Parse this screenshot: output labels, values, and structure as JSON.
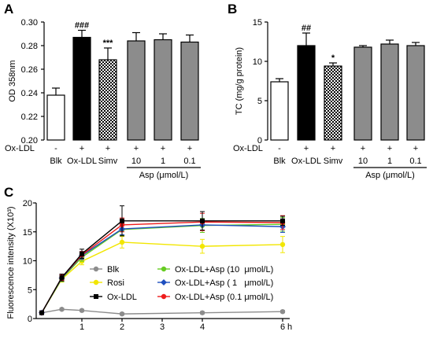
{
  "chart_data": [
    {
      "panel": "A",
      "type": "bar",
      "categories": [
        "Blk",
        "Ox-LDL",
        "Simv",
        "10",
        "1",
        "0.1"
      ],
      "values": [
        0.238,
        0.287,
        0.268,
        0.284,
        0.285,
        0.283
      ],
      "errors": [
        0.006,
        0.006,
        0.01,
        0.007,
        0.005,
        0.006
      ],
      "annotations": [
        {
          "index": 1,
          "text": "###"
        },
        {
          "index": 2,
          "text": "***"
        }
      ],
      "treatment_row": {
        "label": "Ox-LDL",
        "values": [
          "-",
          "+",
          "+",
          "+",
          "+",
          "+"
        ]
      },
      "group": {
        "label": "Asp (μmol/L)",
        "from": 3,
        "to": 5
      },
      "ylabel": "OD 358nm",
      "ylim": [
        0.2,
        0.3
      ],
      "yticks": [
        "0.20",
        "0.22",
        "0.24",
        "0.26",
        "0.28",
        "0.30"
      ],
      "colors": [
        "#ffffff",
        "#000000",
        "#ffffff",
        "#8c8c8c",
        "#8c8c8c",
        "#8c8c8c"
      ],
      "checkered": [
        false,
        false,
        true,
        false,
        false,
        false
      ],
      "grid": false
    },
    {
      "panel": "B",
      "type": "bar",
      "categories": [
        "Blk",
        "Ox-LDL",
        "Simv",
        "10",
        "1",
        "0.1"
      ],
      "values": [
        7.4,
        12.0,
        9.4,
        11.8,
        12.2,
        12.0
      ],
      "errors": [
        0.4,
        1.6,
        0.4,
        0.2,
        0.5,
        0.4
      ],
      "annotations": [
        {
          "index": 1,
          "text": "##"
        },
        {
          "index": 2,
          "text": "*"
        }
      ],
      "treatment_row": {
        "label": "Ox-LDL",
        "values": [
          "-",
          "+",
          "+",
          "+",
          "+",
          "+"
        ]
      },
      "group": {
        "label": "Asp (μmol/L)",
        "from": 3,
        "to": 5
      },
      "ylabel": "TC (mg/g protein)",
      "ylim": [
        0,
        15
      ],
      "yticks": [
        0,
        5,
        10,
        15
      ],
      "colors": [
        "#ffffff",
        "#000000",
        "#ffffff",
        "#8c8c8c",
        "#8c8c8c",
        "#8c8c8c"
      ],
      "checkered": [
        false,
        false,
        true,
        false,
        false,
        false
      ],
      "grid": false
    },
    {
      "panel": "C",
      "type": "line",
      "x": [
        0,
        0.5,
        1,
        2,
        4,
        6
      ],
      "xticks": [
        1,
        2,
        3,
        4,
        6
      ],
      "xlabel": "h",
      "ylabel": "Fluorescence intensity (X10³)",
      "ylim": [
        0,
        20
      ],
      "yticks": [
        0,
        5,
        10,
        15,
        20
      ],
      "legend": "inside-center",
      "grid": false,
      "series": [
        {
          "name": "Blk",
          "color": "#8c8c8c",
          "marker": "circle",
          "values": [
            1.0,
            1.6,
            1.4,
            0.8,
            1.0,
            1.2
          ],
          "errors": [
            0.2,
            0.2,
            0.2,
            0.2,
            0.2,
            0.2
          ]
        },
        {
          "name": "Rosi",
          "color": "#f2e600",
          "marker": "circle",
          "values": [
            1.0,
            6.8,
            9.9,
            13.2,
            12.5,
            12.8
          ],
          "errors": [
            0.2,
            0.5,
            0.6,
            1.0,
            1.2,
            1.4
          ]
        },
        {
          "name": "Ox-LDL",
          "color": "#000000",
          "marker": "square",
          "values": [
            1.0,
            7.1,
            11.2,
            16.9,
            16.9,
            16.9
          ],
          "errors": [
            0.2,
            0.6,
            0.8,
            2.6,
            1.6,
            0.8
          ]
        },
        {
          "name": "Ox-LDL+Asp (10  μmol/L)",
          "color": "#66cc22",
          "marker": "circle",
          "values": [
            1.0,
            6.9,
            10.6,
            15.4,
            16.1,
            16.3
          ],
          "errors": [
            0.2,
            0.5,
            0.7,
            1.0,
            1.2,
            1.2
          ]
        },
        {
          "name": "Ox-LDL+Asp ( 1   μmol/L)",
          "color": "#1f4fbf",
          "marker": "diamond",
          "values": [
            1.0,
            7.0,
            10.9,
            15.5,
            16.2,
            15.9
          ],
          "errors": [
            0.2,
            0.5,
            0.7,
            1.0,
            0.9,
            1.0
          ]
        },
        {
          "name": "Ox-LDL+Asp (0.1 μmol/L)",
          "color": "#ee1c1c",
          "marker": "circle",
          "values": [
            1.0,
            7.1,
            11.0,
            16.2,
            16.7,
            16.6
          ],
          "errors": [
            0.2,
            0.5,
            0.6,
            1.2,
            1.5,
            1.2
          ]
        }
      ]
    }
  ]
}
